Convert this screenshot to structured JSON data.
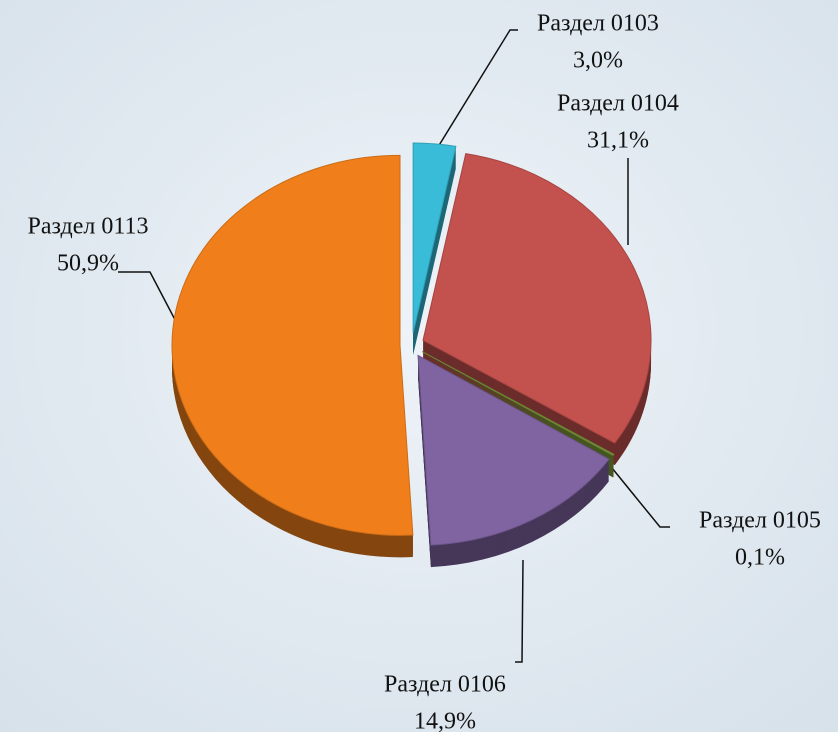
{
  "chart_data": {
    "type": "pie",
    "categories": [
      "Раздел 0103",
      "Раздел 0104",
      "Раздел 0105",
      "Раздел 0106",
      "Раздел 0113"
    ],
    "values": [
      3.0,
      31.1,
      0.1,
      14.9,
      50.9
    ],
    "value_labels": [
      "3,0%",
      "31,1%",
      "0,1%",
      "14,9%",
      "50,9%"
    ],
    "colors": [
      "#38bcd8",
      "#c3514e",
      "#7d9c3c",
      "#8064a2",
      "#f07f1b"
    ]
  }
}
